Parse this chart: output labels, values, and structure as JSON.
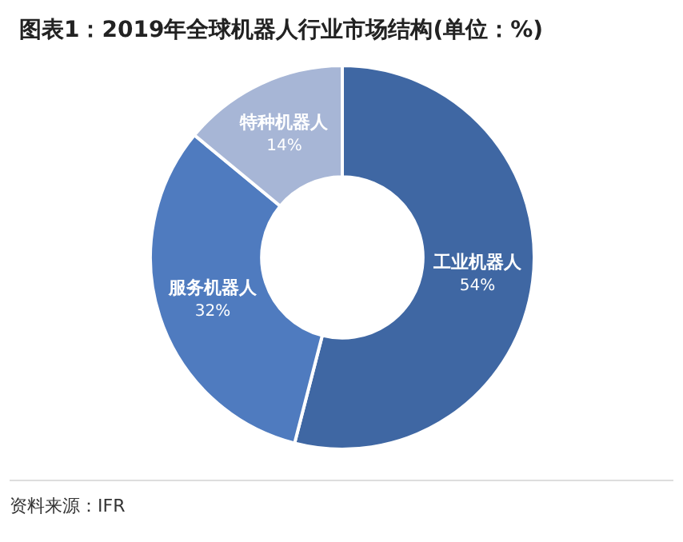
{
  "chart_data": {
    "type": "donut",
    "title": "图表1：2019年全球机器人行业市场结构(单位：%)",
    "categories": [
      "工业机器人",
      "服务机器人",
      "特种机器人"
    ],
    "values": [
      54,
      32,
      14
    ],
    "value_labels": [
      "54%",
      "32%",
      "14%"
    ],
    "colors": [
      "#3f67a3",
      "#4f7bbf",
      "#a7b6d6"
    ],
    "legend": false,
    "annotations": [
      "资料来源：IFR"
    ]
  }
}
